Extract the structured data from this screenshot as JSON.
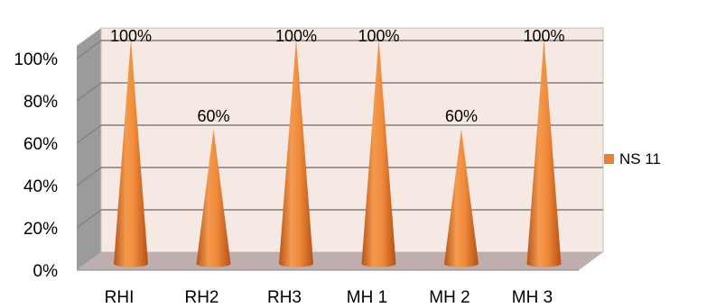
{
  "chart_data": {
    "type": "bar",
    "bar_shape": "cone",
    "3d": true,
    "categories": [
      "RHI",
      "RH2",
      "RH3",
      "MH 1",
      "MH 2",
      "MH 3"
    ],
    "series": [
      {
        "name": "NS 11",
        "values": [
          100,
          60,
          100,
          100,
          60,
          100
        ],
        "color": "#ed7d31"
      }
    ],
    "data_labels": [
      "100%",
      "60%",
      "100%",
      "100%",
      "60%",
      "100%"
    ],
    "y_ticks": [
      "0%",
      "20%",
      "40%",
      "60%",
      "80%",
      "100%"
    ],
    "ylim": [
      0,
      100
    ],
    "grid": true,
    "legend": {
      "position": "right",
      "entries": [
        "NS 11"
      ]
    },
    "colors": {
      "back_wall": "#f6e8e3",
      "side_wall": "#9b9b9b",
      "floor": "#bfaeae",
      "bar": "#ed7d31"
    }
  }
}
